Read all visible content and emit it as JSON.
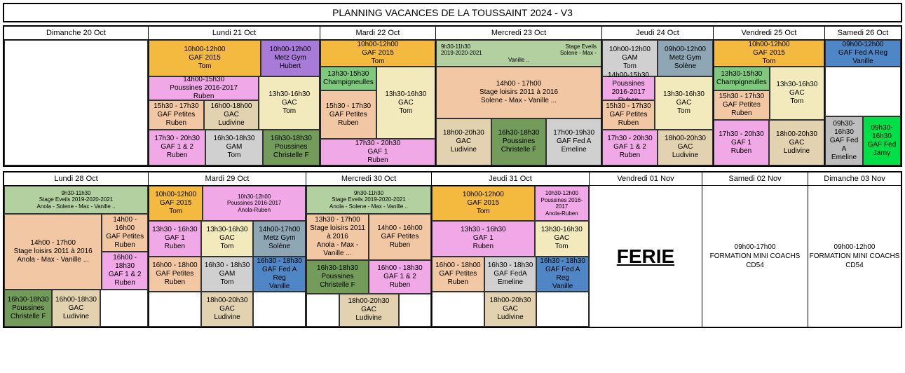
{
  "title": "PLANNING VACANCES DE LA TOUSSAINT 2024 - V3",
  "colors": {
    "orange": "#f4b93f",
    "purple": "#a97bd8",
    "ylight": "#f2e9bd",
    "pink": "#f0a8e6",
    "peach": "#f2c7a3",
    "grey": "#d0d0d0",
    "tan": "#e2d2b0",
    "dgreen": "#739b5a",
    "blue": "#7eabd6",
    "bgreen": "#7ec97e",
    "sage": "#b3d0a0",
    "mgreen": "#8db971",
    "steel": "#8fa6b5",
    "green2": "#00e046",
    "grey2": "#bdbdbd",
    "dblue": "#4f86c6",
    "white": "#ffffff"
  },
  "w1": {
    "d0": {
      "head": "Dimanche 20 Oct"
    },
    "d1": {
      "head": "Lundi 21 Oct",
      "a1": {
        "t": "10h00-12h00",
        "n": "GAF 2015",
        "p": "Tom",
        "c": "orange"
      },
      "a2": {
        "t": "10h00-12h00",
        "n": "Metz Gym",
        "p": "Hubert",
        "c": "purple"
      },
      "b": {
        "t": "14h00-15h30",
        "n": "Poussines 2016-2017",
        "p": "Ruben",
        "c": "pink"
      },
      "c1": {
        "t": "15h30 - 17h30",
        "n": "GAF Petites",
        "p": "Ruben",
        "c": "peach"
      },
      "c2": {
        "t": "16h00-18h00",
        "n": "GAC",
        "p": "Ludivine",
        "c": "tan"
      },
      "d": {
        "t": "13h30-16h30",
        "n": "GAC",
        "p": "Tom",
        "c": "ylight"
      },
      "e1": {
        "t": "17h30 - 20h30",
        "n": "GAF 1 & 2",
        "p": "Ruben",
        "c": "pink"
      },
      "e2": {
        "t": "16h30-18h30",
        "n": "GAM",
        "p": "Tom",
        "c": "grey"
      },
      "e3": {
        "t": "16h30-18h30",
        "n": "Poussines",
        "p": "Christelle F",
        "c": "dgreen"
      }
    },
    "d2": {
      "head": "Mardi 22 Oct",
      "a": {
        "t": "10h00-12h00",
        "n": "GAF 2015",
        "p": "Tom",
        "c": "orange"
      },
      "b": {
        "t": "13h30-15h30",
        "n": "Champigneulles",
        "p": "",
        "c": "bgreen"
      },
      "c1": {
        "t": "15h30 - 17h30",
        "n": "GAF Petites",
        "p": "Ruben",
        "c": "peach"
      },
      "c2": {
        "t": "13h30-16h30",
        "n": "GAC",
        "p": "Tom",
        "c": "ylight"
      },
      "e": {
        "t": "17h30 - 20h30",
        "n": "GAF 1",
        "p": "Ruben",
        "c": "pink"
      }
    },
    "d3": {
      "head": "Mercredi 23 Oct",
      "a": {
        "t": "9h30-11h30",
        "n": "2019-2020-2021",
        "p": "Solene - Max -",
        "r": "Stage Eveils",
        "r2": "Vanille ..",
        "c": "sage"
      },
      "b": {
        "t": "14h00 - 17h00",
        "n": "Stage loisirs 2011 à 2016",
        "p": "Solene - Max - Vanille ...",
        "c": "peach"
      },
      "e1": {
        "t": "18h00-20h30",
        "n": "GAC",
        "p": "Ludivine",
        "c": "tan"
      },
      "e2": {
        "t": "16h30-18h30",
        "n": "Poussines",
        "p": "Christelle F",
        "c": "dgreen"
      },
      "e3": {
        "t": "17h00-19h30",
        "n": "GAF Fed A",
        "p": "Emeline",
        "c": "grey"
      }
    },
    "d4": {
      "head": "Jeudi 24 Oct",
      "a1": {
        "t": "10h00-12h00",
        "n": "GAM",
        "p": "Tom",
        "c": "grey"
      },
      "a2": {
        "t": "09h00-12h00",
        "n": "Metz Gym",
        "p": "Solène",
        "c": "steel"
      },
      "b": {
        "t": "14h00-15h30",
        "n": "Poussines 2016-2017",
        "p": "Ruben",
        "c": "pink"
      },
      "c1": {
        "t": "15h30 - 17h30",
        "n": "GAF Petites",
        "p": "Ruben",
        "c": "peach"
      },
      "c2": {
        "t": "13h30-16h30",
        "n": "GAC",
        "p": "Tom",
        "c": "ylight"
      },
      "e1": {
        "t": "17h30 - 20h30",
        "n": "GAF 1 & 2",
        "p": "Ruben",
        "c": "pink"
      },
      "e2": {
        "t": "18h00-20h30",
        "n": "GAC",
        "p": "Ludivine",
        "c": "tan"
      }
    },
    "d5": {
      "head": "Vendredi 25 Oct",
      "a": {
        "t": "10h00-12h00",
        "n": "GAF 2015",
        "p": "Tom",
        "c": "orange"
      },
      "b": {
        "t": "13h30-15h30",
        "n": "Champigneulles",
        "p": "",
        "c": "bgreen"
      },
      "c1": {
        "t": "15h30 - 17h30",
        "n": "GAF Petites",
        "p": "Ruben",
        "c": "peach"
      },
      "c2": {
        "t": "13h30-16h30",
        "n": "GAC",
        "p": "Tom",
        "c": "ylight"
      },
      "e1": {
        "t": "17h30 - 20h30",
        "n": "GAF 1",
        "p": "Ruben",
        "c": "pink"
      },
      "e2": {
        "t": "18h00-20h30",
        "n": "GAC",
        "p": "Ludivine",
        "c": "tan"
      }
    },
    "d6": {
      "head": "Samedi 26 Oct",
      "a": {
        "t": "09h00-12h00",
        "n": "GAF Fed A Reg",
        "p": "Vanille",
        "c": "dblue"
      },
      "c1": {
        "t": "09h30-16h30",
        "n": "GAF Fed A",
        "p": "Emeline",
        "c": "grey2"
      },
      "c2": {
        "t": "09h30-16h30",
        "n": "GAF Fed",
        "p": "Jarny",
        "c": "green2"
      }
    }
  },
  "w2": {
    "d0": {
      "head": "Lundi 28 Oct",
      "a": {
        "t": "9h30-11h30",
        "n": "Stage Eveils  2019-2020-2021",
        "p": "Anola - Solene - Max - Vanille ..",
        "c": "sage"
      },
      "b1": {
        "t": "14h00 - 17h00",
        "n": "Stage loisirs 2011 à 2016",
        "p": "Anola - Max - Vanille ...",
        "c": "peach"
      },
      "b2": {
        "t": "14h00 - 16h00",
        "n": "GAF Petites",
        "p": "Ruben",
        "c": "peach"
      },
      "b3": {
        "t": "16h00 - 18h30",
        "n": "GAF 1 & 2",
        "p": "Ruben",
        "c": "pink"
      },
      "e1": {
        "t": "16h30-18h30",
        "n": "Poussines",
        "p": "Christelle F",
        "c": "dgreen"
      },
      "e2": {
        "t": "16h00-18h30",
        "n": "GAC",
        "p": "Ludivine",
        "c": "tan"
      }
    },
    "d1": {
      "head": "Mardi 29 Oct",
      "a1": {
        "t": "10h00-12h00",
        "n": "GAF 2015",
        "p": "Tom",
        "c": "orange"
      },
      "a2": {
        "t": "10h30-12h00",
        "n": "Poussines 2016-2017",
        "p": "Anola-Ruben",
        "c": "pink"
      },
      "b1": {
        "t": "13h30 - 16h30",
        "n": "GAF 1",
        "p": "Ruben",
        "c": "pink"
      },
      "b2": {
        "t": "13h30-16h30",
        "n": "GAC",
        "p": "Tom",
        "c": "ylight"
      },
      "b3": {
        "t": "14h00-17h00",
        "n": "Metz Gym",
        "p": "Solène",
        "c": "steel"
      },
      "e1": {
        "t": "16h00 - 18h00",
        "n": "GAF Petites",
        "p": "Ruben",
        "c": "peach"
      },
      "e2": {
        "t": "16h30 - 18h30",
        "n": "GAM",
        "p": "Tom",
        "c": "grey"
      },
      "e3": {
        "t": "16h30 - 18h30",
        "n": "GAF Fed A Reg",
        "p": "Vanille",
        "c": "dblue"
      },
      "f": {
        "t": "18h00-20h30",
        "n": "GAC",
        "p": "Ludivine",
        "c": "tan"
      }
    },
    "d2": {
      "head": "Mercredi 30 Oct",
      "a": {
        "t": "9h30-11h30",
        "n": "Stage Eveils  2019-2020-2021",
        "p": "Anola - Solene - Max - Vanille ..",
        "c": "sage"
      },
      "b1": {
        "t": "13h30 - 17h00",
        "n": "Stage loisirs 2011 à 2016",
        "p": "Anola - Max - Vanille ...",
        "c": "peach"
      },
      "b2": {
        "t": "14h00 - 16h00",
        "n": "GAF Petites",
        "p": "Ruben",
        "c": "peach"
      },
      "e1": {
        "t": "16h30-18h30",
        "n": "Poussines",
        "p": "Christelle F",
        "c": "dgreen"
      },
      "e2": {
        "t": "16h00 - 18h30",
        "n": "GAF 1 & 2",
        "p": "Ruben",
        "c": "pink"
      },
      "f": {
        "t": "18h00-20h30",
        "n": "GAC",
        "p": "Ludivine",
        "c": "tan"
      }
    },
    "d3": {
      "head": "Jeudi 31 Oct",
      "a1": {
        "t": "10h00-12h00",
        "n": "GAF 2015",
        "p": "Tom",
        "c": "orange"
      },
      "a2": {
        "t": "10h30-12h00",
        "n": "Poussines 2016-2017",
        "p": "Anola-Ruben",
        "c": "pink"
      },
      "b1": {
        "t": "13h30 - 16h30",
        "n": "GAF 1",
        "p": "Ruben",
        "c": "pink"
      },
      "b2": {
        "t": "13h30-16h30",
        "n": "GAC",
        "p": "Tom",
        "c": "ylight"
      },
      "e1": {
        "t": "16h00 - 18h00",
        "n": "GAF Petites",
        "p": "Ruben",
        "c": "peach"
      },
      "e2": {
        "t": "16h30 - 18h30",
        "n": "GAF FedA",
        "p": "Emeline",
        "c": "grey"
      },
      "e3": {
        "t": "16h30 - 18h30",
        "n": "GAF Fed A Reg",
        "p": "Vanille",
        "c": "dblue"
      },
      "f": {
        "t": "18h00-20h30",
        "n": "GAC",
        "p": "Ludivine",
        "c": "tan"
      }
    },
    "d4": {
      "head": "Vendredi 01 Nov",
      "ferie": "FERIE"
    },
    "d5": {
      "head": "Samedi 02 Nov",
      "txt": "09h00-17h00\nFORMATION MINI COACHS\nCD54"
    },
    "d6": {
      "head": "Dimanche 03 Nov",
      "txt": "09h00-12h00\nFORMATION MINI COACHS\nCD54"
    }
  }
}
